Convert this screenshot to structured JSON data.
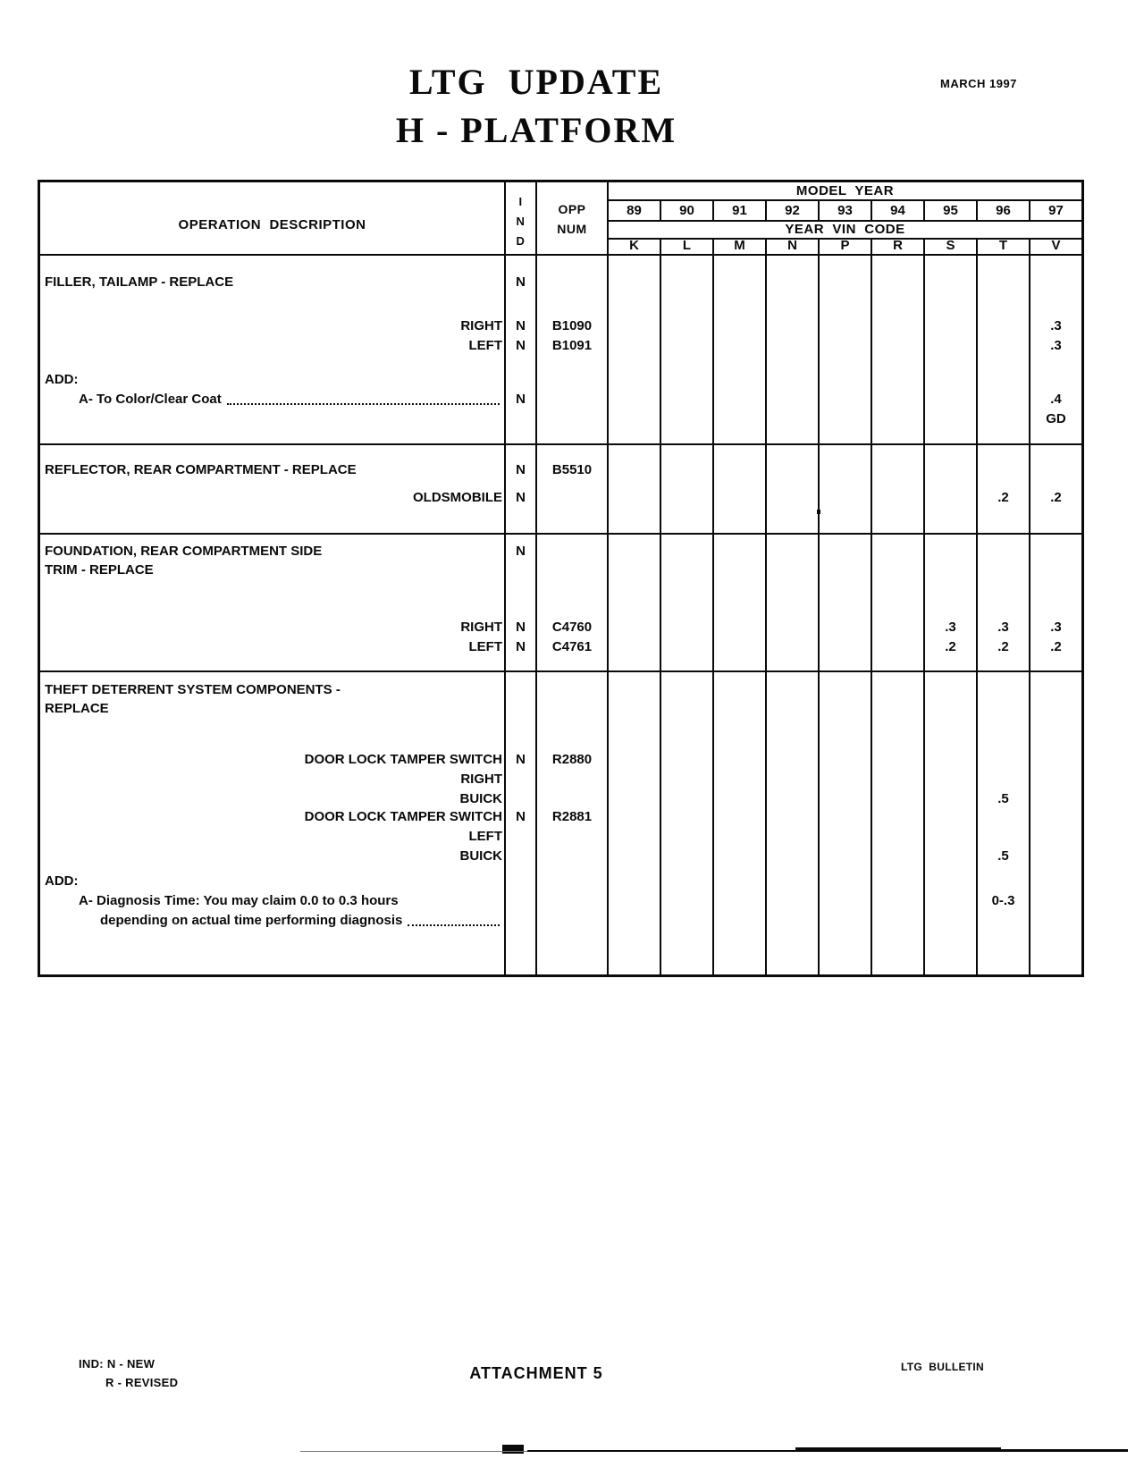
{
  "page": {
    "title1": "LTG  UPDATE",
    "title2": "H - PLATFORM",
    "date": "MARCH 1997"
  },
  "table": {
    "headers": {
      "operation": "OPERATION  DESCRIPTION",
      "ind": [
        "I",
        "N",
        "D"
      ],
      "opp": [
        "OPP",
        "NUM"
      ],
      "model_year": "MODEL  YEAR",
      "years": [
        "89",
        "90",
        "91",
        "92",
        "93",
        "94",
        "95",
        "96",
        "97"
      ],
      "vin_label": "YEAR  VIN  CODE",
      "vin_codes": [
        "K",
        "L",
        "M",
        "N",
        "P",
        "R",
        "S",
        "T",
        "V"
      ]
    },
    "sections": [
      {
        "name": "filler-tailamp-replace",
        "rows": [
          {
            "desc": "FILLER, TAILAMP - REPLACE",
            "align": "left",
            "ind": "N"
          },
          {
            "desc": "RIGHT",
            "align": "right",
            "ind": "N",
            "opp": "B1090",
            "vals": {
              "V": ".3"
            }
          },
          {
            "desc": "LEFT",
            "align": "right",
            "ind": "N",
            "opp": "B1091",
            "vals": {
              "V": ".3"
            }
          },
          {
            "desc": "ADD:",
            "align": "left"
          },
          {
            "desc": "A- To Color/Clear Coat",
            "align": "left",
            "indent": 1,
            "leader": true,
            "ind": "N",
            "vals": {
              "V": ".4"
            }
          },
          {
            "desc": "",
            "align": "left",
            "vals": {
              "V": "GD"
            }
          }
        ]
      },
      {
        "name": "reflector-rear-compartment-replace",
        "rows": [
          {
            "desc": "REFLECTOR, REAR COMPARTMENT - REPLACE",
            "align": "left",
            "ind": "N",
            "opp": "B5510"
          },
          {
            "desc": "OLDSMOBILE",
            "align": "right",
            "ind": "N",
            "vals": {
              "T": ".2",
              "V": ".2"
            }
          }
        ]
      },
      {
        "name": "foundation-rear-compartment-side-trim-replace",
        "rows": [
          {
            "desc": "FOUNDATION, REAR COMPARTMENT SIDE",
            "align": "left",
            "ind": "N"
          },
          {
            "desc": "TRIM - REPLACE",
            "align": "left"
          },
          {
            "desc": "RIGHT",
            "align": "right",
            "ind": "N",
            "opp": "C4760",
            "vals": {
              "S": ".3",
              "T": ".3",
              "V": ".3"
            }
          },
          {
            "desc": "LEFT",
            "align": "right",
            "ind": "N",
            "opp": "C4761",
            "vals": {
              "S": ".2",
              "T": ".2",
              "V": ".2"
            }
          }
        ]
      },
      {
        "name": "theft-deterrent-system-components-replace",
        "rows": [
          {
            "desc": "THEFT DETERRENT SYSTEM COMPONENTS -",
            "align": "left"
          },
          {
            "desc": "REPLACE",
            "align": "left"
          },
          {
            "desc": "DOOR LOCK TAMPER SWITCH",
            "align": "right",
            "ind": "N",
            "opp": "R2880"
          },
          {
            "desc": "RIGHT",
            "align": "right"
          },
          {
            "desc": "BUICK",
            "align": "right",
            "vals": {
              "T": ".5"
            }
          },
          {
            "desc": "DOOR LOCK TAMPER SWITCH",
            "align": "right",
            "ind": "N",
            "opp": "R2881"
          },
          {
            "desc": "LEFT",
            "align": "right"
          },
          {
            "desc": "BUICK",
            "align": "right",
            "vals": {
              "T": ".5"
            }
          },
          {
            "desc": "ADD:",
            "align": "left"
          },
          {
            "desc": "A- Diagnosis Time: You may claim 0.0 to 0.3 hours",
            "align": "left",
            "indent": 1,
            "vals": {
              "T": "0-.3"
            }
          },
          {
            "desc": "depending on actual time performing diagnosis",
            "align": "left",
            "indent": 2,
            "leader": true
          }
        ]
      }
    ]
  },
  "footer": {
    "ind_legend1": "IND: N - NEW",
    "ind_legend2": "R - REVISED",
    "attachment": "ATTACHMENT 5",
    "bulletin": "LTG  BULLETIN"
  }
}
